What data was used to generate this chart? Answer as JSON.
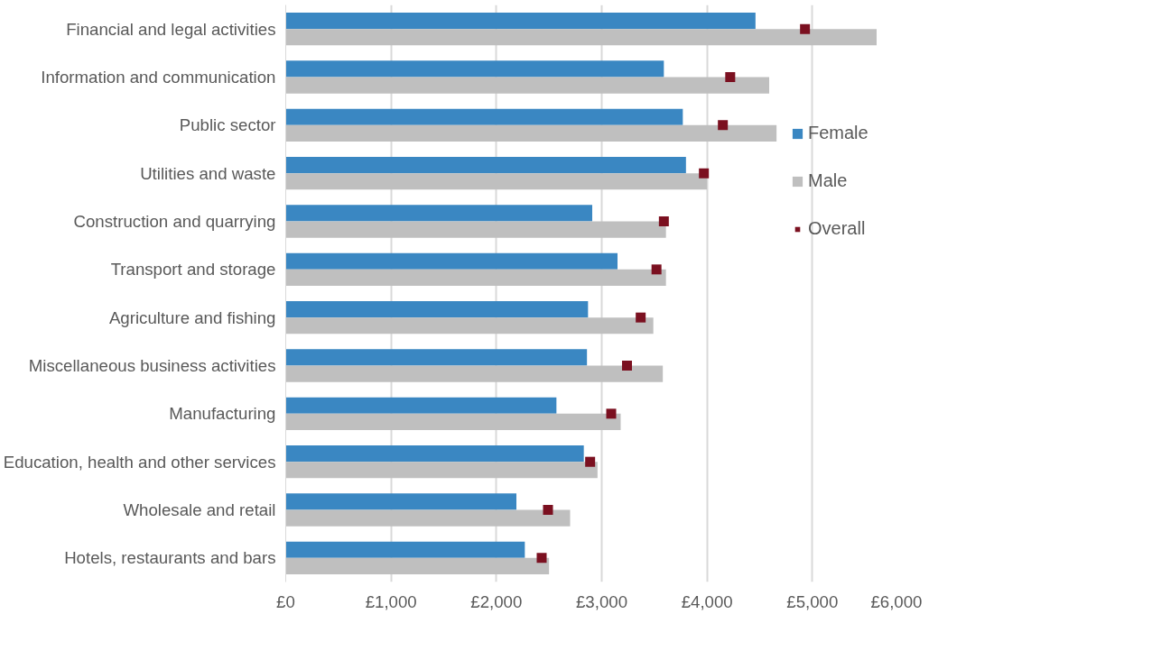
{
  "chart_data": {
    "type": "bar",
    "orientation": "horizontal",
    "categories": [
      "Financial and legal activities",
      "Information and communication",
      "Public sector",
      "Utilities and waste",
      "Construction and quarrying",
      "Transport and storage",
      "Agriculture and fishing",
      "Miscellaneous business activities",
      "Manufacturing",
      "Education, health and other services",
      "Wholesale and retail",
      "Hotels, restaurants and bars"
    ],
    "series": [
      {
        "name": "Female",
        "color": "#3a87c2",
        "values": [
          4460,
          3590,
          3770,
          3800,
          2910,
          3150,
          2870,
          2860,
          2570,
          2830,
          2190,
          2270
        ]
      },
      {
        "name": "Male",
        "color": "#bfbfbf",
        "values": [
          5610,
          4590,
          4660,
          4000,
          3610,
          3610,
          3490,
          3580,
          3180,
          2960,
          2700,
          2500
        ]
      },
      {
        "name": "Overall",
        "color": "#7b1020",
        "type": "scatter",
        "values": [
          4930,
          4220,
          4150,
          3970,
          3590,
          3520,
          3370,
          3240,
          3090,
          2890,
          2490,
          2430
        ]
      }
    ],
    "xlim": [
      0,
      6000
    ],
    "xticks": [
      {
        "value": 0,
        "label": "£0"
      },
      {
        "value": 1000,
        "label": "£1,000"
      },
      {
        "value": 2000,
        "label": "£2,000"
      },
      {
        "value": 3000,
        "label": "£3,000"
      },
      {
        "value": 4000,
        "label": "£4,000"
      },
      {
        "value": 5000,
        "label": "£5,000"
      },
      {
        "value": 6000,
        "label": "£6,000"
      }
    ],
    "grid": "x",
    "legend": "right"
  }
}
